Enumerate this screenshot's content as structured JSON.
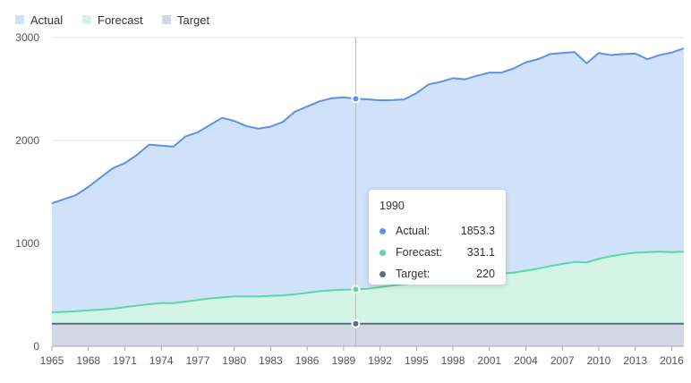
{
  "chart_data": {
    "type": "area",
    "x": [
      1965,
      1966,
      1967,
      1968,
      1969,
      1970,
      1971,
      1972,
      1973,
      1974,
      1975,
      1976,
      1977,
      1978,
      1979,
      1980,
      1981,
      1982,
      1983,
      1984,
      1985,
      1986,
      1987,
      1988,
      1989,
      1990,
      1991,
      1992,
      1993,
      1994,
      1995,
      1996,
      1997,
      1998,
      1999,
      2000,
      2001,
      2002,
      2003,
      2004,
      2005,
      2006,
      2007,
      2008,
      2009,
      2010,
      2011,
      2012,
      2013,
      2014,
      2015,
      2016,
      2017
    ],
    "x_ticks": [
      "1965",
      "1968",
      "1971",
      "1974",
      "1977",
      "1980",
      "1983",
      "1986",
      "1989",
      "1992",
      "1995",
      "1998",
      "2001",
      "2004",
      "2007",
      "2010",
      "2013",
      "2016"
    ],
    "y_ticks": [
      "0",
      "1000",
      "2000",
      "3000"
    ],
    "ylim": [
      0,
      3000
    ],
    "series": [
      {
        "name": "Actual",
        "color": "#5b93e8",
        "fill": "#d0e1fa",
        "values": [
          1390,
          1430,
          1470,
          1550,
          1640,
          1730,
          1780,
          1860,
          1960,
          1950,
          1940,
          2040,
          2080,
          2150,
          2220,
          2190,
          2140,
          2115,
          2135,
          2180,
          2280,
          2330,
          2380,
          2410,
          2420,
          2405,
          2400,
          2390,
          2392,
          2400,
          2460,
          2545,
          2570,
          2605,
          2595,
          2630,
          2660,
          2660,
          2700,
          2760,
          2790,
          2840,
          2850,
          2860,
          2750,
          2850,
          2830,
          2840,
          2845,
          2790,
          2830,
          2855,
          2895
        ]
      },
      {
        "name": "Forecast",
        "color": "#5ed6a8",
        "fill": "#d3f4e6",
        "values": [
          330,
          335,
          340,
          350,
          355,
          365,
          380,
          395,
          410,
          420,
          420,
          435,
          450,
          465,
          475,
          485,
          485,
          485,
          490,
          495,
          505,
          520,
          535,
          545,
          550,
          553,
          560,
          575,
          590,
          605,
          615,
          635,
          650,
          665,
          680,
          695,
          705,
          710,
          715,
          735,
          755,
          780,
          800,
          820,
          815,
          850,
          875,
          895,
          910,
          915,
          920,
          915,
          920
        ]
      },
      {
        "name": "Target",
        "color": "#5a6b82",
        "fill": "#d1d8e4",
        "values": [
          220,
          220,
          220,
          220,
          220,
          220,
          220,
          220,
          220,
          220,
          220,
          220,
          220,
          220,
          220,
          220,
          220,
          220,
          220,
          220,
          220,
          220,
          220,
          220,
          220,
          220,
          220,
          220,
          220,
          220,
          220,
          220,
          220,
          220,
          220,
          220,
          220,
          220,
          220,
          220,
          220,
          220,
          220,
          220,
          220,
          220,
          220,
          220,
          220,
          220,
          220,
          220,
          220
        ]
      }
    ],
    "hover_index": 25,
    "legend_position": "top-left",
    "grid": true
  },
  "legend": {
    "actual": "Actual",
    "forecast": "Forecast",
    "target": "Target"
  },
  "tooltip": {
    "title": "1990",
    "rows": [
      {
        "label": "Actual:",
        "value": "1853.3",
        "color": "#5b93e8"
      },
      {
        "label": "Forecast:",
        "value": "331.1",
        "color": "#5ed6a8"
      },
      {
        "label": "Target:",
        "value": "220",
        "color": "#5a6b82"
      }
    ]
  }
}
